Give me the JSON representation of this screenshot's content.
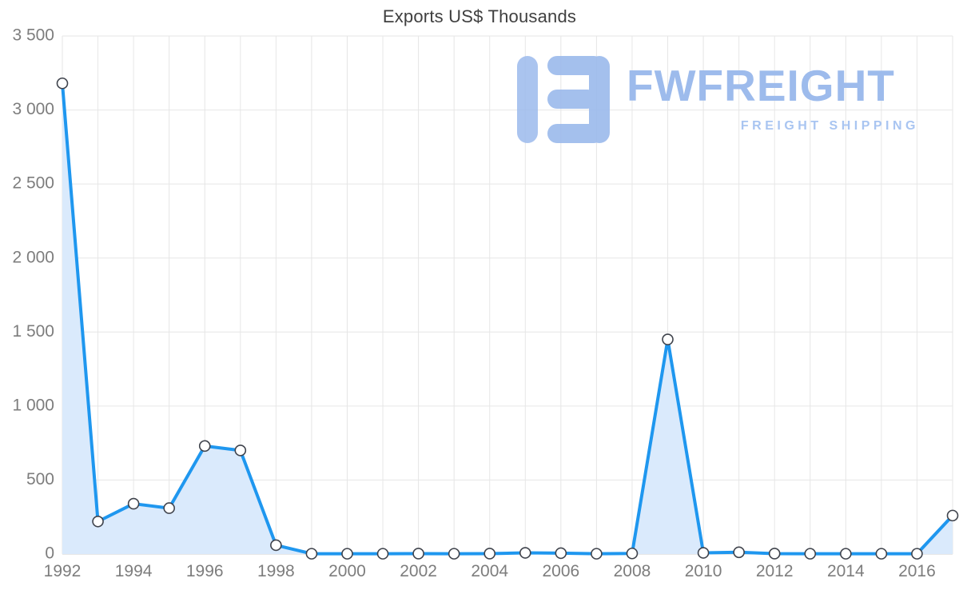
{
  "title": "Exports US$ Thousands",
  "watermark": {
    "brand": "FWFREIGHT",
    "tagline": "FREIGHT SHIPPING"
  },
  "colors": {
    "line": "#1f97ef",
    "area_fill": "#daeafc",
    "marker_fill": "#ffffff",
    "marker_stroke": "#3f434c",
    "grid": "#e6e6e6",
    "axis_line": "#cfcfcf",
    "axis_text": "#7d7d7d",
    "title_text": "#3f3f3f",
    "watermark_blue": "#9dbbec"
  },
  "chart_data": {
    "type": "area",
    "title": "Exports US$ Thousands",
    "x": [
      1992,
      1993,
      1994,
      1995,
      1996,
      1997,
      1998,
      1999,
      2000,
      2001,
      2002,
      2003,
      2004,
      2005,
      2006,
      2007,
      2008,
      2009,
      2010,
      2011,
      2012,
      2013,
      2014,
      2015,
      2016,
      2017
    ],
    "values": [
      3180,
      220,
      340,
      310,
      730,
      700,
      60,
      2,
      2,
      2,
      3,
      2,
      3,
      8,
      6,
      2,
      4,
      1450,
      8,
      12,
      3,
      2,
      2,
      2,
      2,
      260
    ],
    "ylim": [
      0,
      3500
    ],
    "yticks": [
      0,
      500,
      1000,
      1500,
      2000,
      2500,
      3000,
      3500
    ],
    "ytick_labels": [
      "0",
      "500",
      "1 000",
      "1 500",
      "2 000",
      "2 500",
      "3 000",
      "3 500"
    ],
    "xticks": [
      1992,
      1994,
      1996,
      1998,
      2000,
      2002,
      2004,
      2006,
      2008,
      2010,
      2012,
      2014,
      2016
    ],
    "grid": true,
    "legend": false,
    "marker": "circle",
    "ylabel": "",
    "xlabel": ""
  }
}
